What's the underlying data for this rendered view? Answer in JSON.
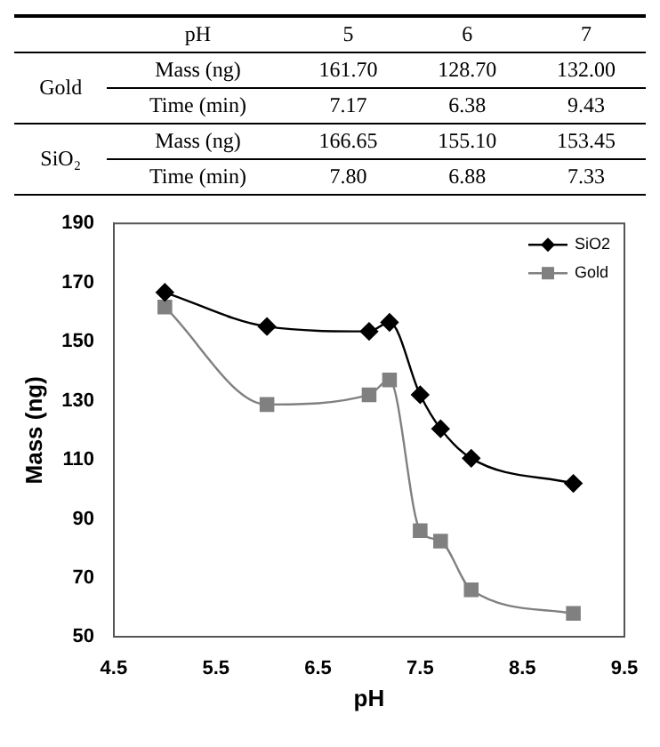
{
  "chart_data": {
    "type": "line",
    "annotations": [
      "pH",
      "5",
      "6",
      "7",
      "Gold",
      "Mass (ng)",
      "161.70",
      "128.70",
      "132.00",
      "Time (min)",
      "7.17",
      "6.38",
      "9.43",
      "SiO₂",
      "Mass (ng)",
      "166.65",
      "155.10",
      "153.45",
      "Time (min)",
      "7.80",
      "6.88",
      "7.33"
    ],
    "x": [
      5,
      6,
      7,
      7.2,
      7.5,
      7.7,
      8,
      9
    ],
    "series": [
      {
        "name": "SiO2",
        "color": "#000000",
        "marker": "diamond",
        "values": [
          166.65,
          155.1,
          153.45,
          156.5,
          132,
          120.5,
          110.5,
          102
        ]
      },
      {
        "name": "Gold",
        "color": "#808080",
        "marker": "square",
        "values": [
          161.7,
          128.7,
          132.0,
          137,
          86,
          82.5,
          66,
          58
        ]
      }
    ],
    "xlabel": "pH",
    "ylabel": "Mass (ng)",
    "xlim": [
      4.5,
      9.5
    ],
    "xticks": [
      4.5,
      5.5,
      6.5,
      7.5,
      8.5,
      9.5
    ],
    "ylim": [
      50,
      190
    ],
    "yticks": [
      50,
      70,
      90,
      110,
      130,
      150,
      170,
      190
    ],
    "grid": false,
    "legend": "top right",
    "line_style": "solid"
  }
}
